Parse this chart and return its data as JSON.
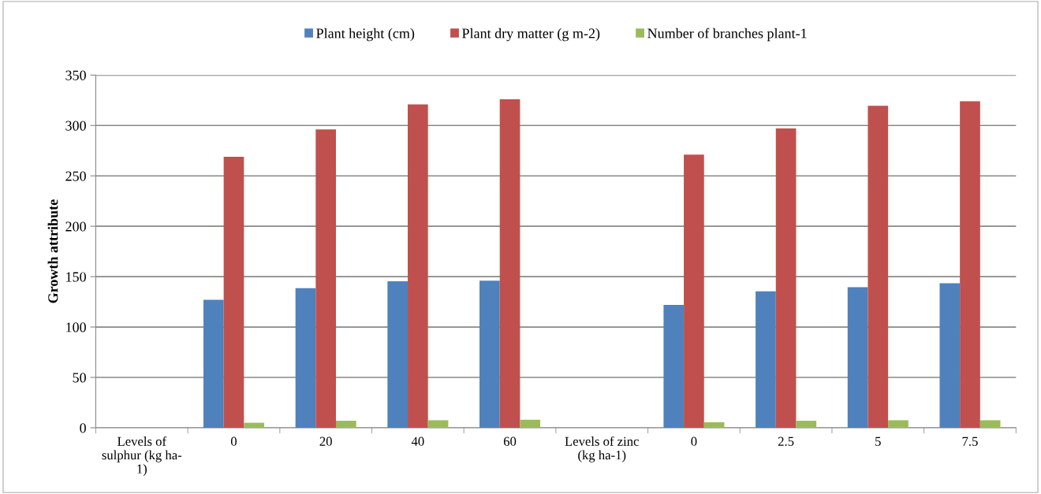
{
  "chart_data": {
    "type": "bar",
    "ylabel": "Growth attribute",
    "categories": [
      "Levels of\nsulphur (kg ha-\n1)",
      "0",
      "20",
      "40",
      "60",
      "Levels of zinc\n(kg ha-1)",
      "0",
      "2.5",
      "5",
      "7.5"
    ],
    "series": [
      {
        "name": "Plant height (cm)",
        "color": "#4f81bd",
        "values": [
          null,
          127,
          138.5,
          145.5,
          146,
          null,
          122,
          135.5,
          139.5,
          143.5
        ]
      },
      {
        "name": "Plant dry matter (g m-2)",
        "color": "#c0504d",
        "values": [
          null,
          269,
          296,
          321,
          326,
          null,
          271,
          297,
          319.5,
          324
        ]
      },
      {
        "name": "Number of branches plant-1",
        "color": "#9bbb59",
        "values": [
          null,
          5,
          7,
          7.5,
          8,
          null,
          5.5,
          7,
          7.5,
          7.5
        ]
      }
    ],
    "ylim": [
      0,
      350
    ],
    "yticks": [
      0,
      50,
      100,
      150,
      200,
      250,
      300,
      350
    ],
    "grid": "y",
    "legend": "top"
  }
}
